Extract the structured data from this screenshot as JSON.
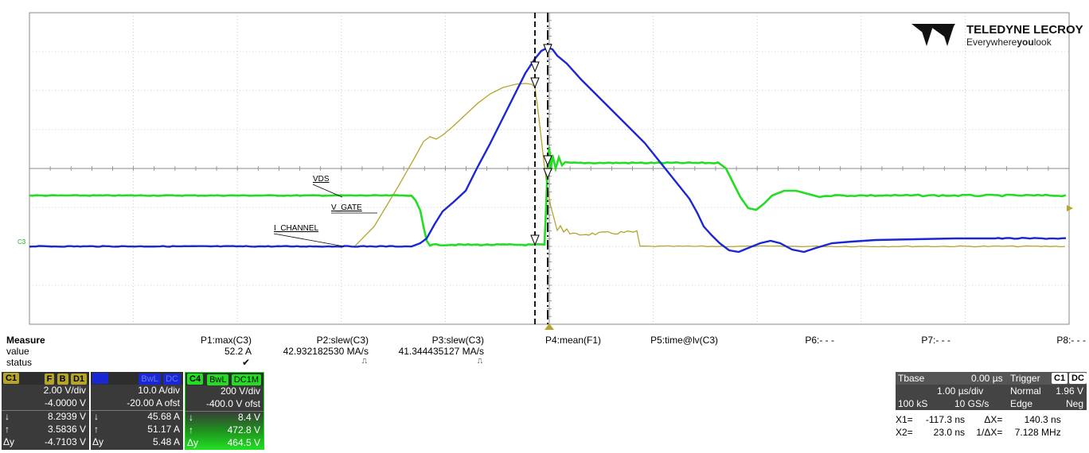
{
  "logo": {
    "brand": "TELEDYNE LECROY",
    "tagline_pre": "Everywhere",
    "tagline_bold": "you",
    "tagline_post": "look"
  },
  "trace_labels": {
    "vds": "VDS",
    "v_gate": "V_GATE",
    "i_channel": "I_CHANNEL",
    "c3_marker": "C3"
  },
  "colors": {
    "ch1": "#b5a42a",
    "ch3": "#1a27d4",
    "ch4": "#22dd22",
    "panel": "#3c3c3c"
  },
  "measure": {
    "title": "Measure",
    "row_labels": {
      "value": "value",
      "status": "status"
    },
    "params": [
      {
        "name": "P1:max(C3)",
        "value": "52.2 A",
        "status": "✔"
      },
      {
        "name": "P2:slew(C3)",
        "value": "42.932182530 MA/s",
        "status": "⎍"
      },
      {
        "name": "P3:slew(C3)",
        "value": "41.344435127 MA/s",
        "status": "⎍"
      },
      {
        "name": "P4:mean(F1)",
        "value": "",
        "status": ""
      },
      {
        "name": "P5:time@lv(C3)",
        "value": "",
        "status": ""
      },
      {
        "name": "P6:- - -",
        "value": "",
        "status": ""
      },
      {
        "name": "P7:- - -",
        "value": "",
        "status": ""
      },
      {
        "name": "P8:- - -",
        "value": "",
        "status": ""
      }
    ]
  },
  "channels": [
    {
      "id": "C1",
      "tags": [
        "F",
        "B",
        "D1"
      ],
      "vdiv": "2.00 V/div",
      "offset": "-4.0000 V",
      "down_arrow": "↓",
      "up_arrow": "↑",
      "dy_label": "Δy",
      "down": "8.2939 V",
      "up": "3.5836 V",
      "dy": "-4.7103 V"
    },
    {
      "id": "C3",
      "tags": [
        "BwL",
        "DC"
      ],
      "vdiv": "10.0 A/div",
      "offset": "-20.00 A ofst",
      "down_arrow": "↓",
      "up_arrow": "↑",
      "dy_label": "Δy",
      "down": "45.68 A",
      "up": "51.17 A",
      "dy": "5.48 A"
    },
    {
      "id": "C4",
      "tags": [
        "BwL",
        "DC1M"
      ],
      "vdiv": "200 V/div",
      "offset": "-400.0 V ofst",
      "down_arrow": "↓",
      "up_arrow": "↑",
      "dy_label": "Δy",
      "down": "8.4 V",
      "up": "472.8 V",
      "dy": "464.5 V"
    }
  ],
  "timebase": {
    "label": "Tbase",
    "delay": "0.00 µs",
    "per_div": "1.00 µs/div",
    "samples": "100 kS",
    "rate": "10 GS/s",
    "trigger_label": "Trigger",
    "trigger_tags": [
      "C1",
      "DC"
    ],
    "mode": "Normal",
    "level": "1.96 V",
    "edge": "Edge",
    "slope": "Neg"
  },
  "cursors": {
    "x1_label": "X1=",
    "x1": "-117.3 ns",
    "dx_label": "ΔX=",
    "dx": "140.3 ns",
    "x2_label": "X2=",
    "x2": "23.0 ns",
    "inv_dx_label": "1/ΔX=",
    "freq": "7.128 MHz"
  }
}
